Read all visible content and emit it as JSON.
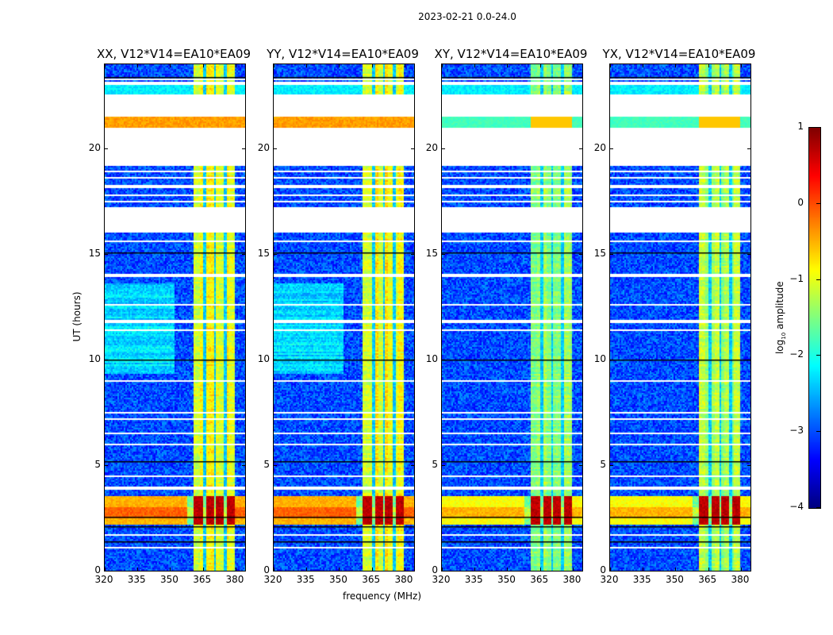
{
  "figure": {
    "suptitle": "2023-02-21 0.0-24.0"
  },
  "chart_data": {
    "type": "heatmap",
    "title": "2023-02-21 0.0-24.0",
    "xlabel": "frequency (MHz)",
    "ylabel": "UT (hours)",
    "xlim": [
      320,
      384.4
    ],
    "ylim": [
      0,
      24
    ],
    "xticks": [
      "320",
      "335",
      "350",
      "365",
      "380"
    ],
    "xtick_values": [
      320,
      335,
      350,
      365,
      380
    ],
    "yticks": [
      "0",
      "5",
      "10",
      "15",
      "20"
    ],
    "ytick_values": [
      0,
      5,
      10,
      15,
      20
    ],
    "panels": [
      {
        "title": "XX, V12*V14=EA10*EA09",
        "pol": "XX",
        "parallel": true
      },
      {
        "title": "YY, V12*V14=EA10*EA09",
        "pol": "YY",
        "parallel": true
      },
      {
        "title": "XY, V12*V14=EA10*EA09",
        "pol": "XY",
        "parallel": false
      },
      {
        "title": "YX, V12*V14=EA10*EA09",
        "pol": "YX",
        "parallel": false
      }
    ],
    "colorbar": {
      "label_main": "log",
      "label_sub": "10",
      "label_rest": " amplitude",
      "range": [
        -4,
        1
      ],
      "ticks": [
        "1",
        "0",
        "−1",
        "−2",
        "−3",
        "−4"
      ],
      "tick_values": [
        1,
        0,
        -1,
        -2,
        -3,
        -4
      ],
      "colormap": "jet"
    },
    "bright_band_mhz": [
      360.7,
      380.0
    ],
    "band_gaps_mhz": [
      365.8,
      370.5,
      375.3
    ],
    "flagged_hour_ranges": [
      [
        21.5,
        22.6
      ],
      [
        19.2,
        21.0
      ],
      [
        16.05,
        17.2
      ]
    ],
    "flagged_hour_lines": [
      23.1,
      23.3,
      18.9,
      18.6,
      18.2,
      17.8,
      17.5,
      15.6,
      14.0,
      12.6,
      11.8,
      11.4,
      9.0,
      7.5,
      7.2,
      6.5,
      6.0,
      4.5,
      3.9,
      1.7,
      1.1
    ],
    "dark_hour_lines": [
      23.4,
      15.1,
      10.0,
      5.2,
      2.1,
      1.4,
      2.55
    ],
    "rfi_hour_ranges": [
      [
        2.2,
        3.5
      ],
      [
        21.0,
        21.5
      ]
    ],
    "levels": {
      "background": -3.0,
      "band_parallel": -0.9,
      "band_cross": -1.3,
      "rfi_band": 0.7,
      "rfi_parallel_wide": -0.5,
      "rfi_cross_wide": -0.9
    }
  }
}
